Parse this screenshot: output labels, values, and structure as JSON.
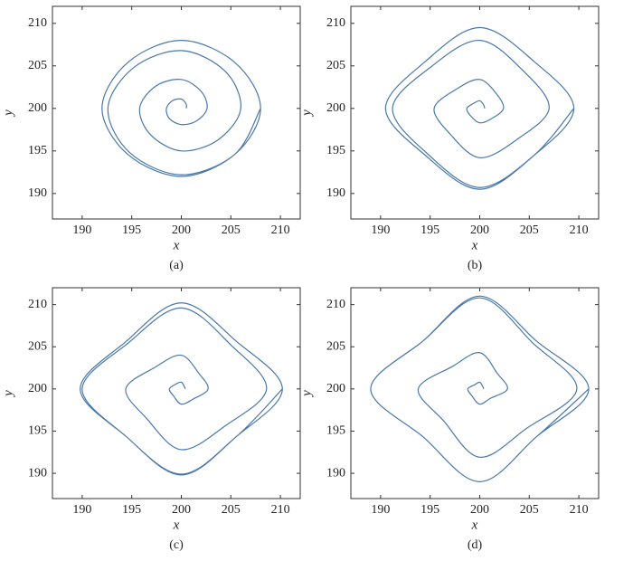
{
  "chart_data": [
    {
      "type": "line",
      "caption": "(a)",
      "xlabel": "x",
      "ylabel": "y",
      "xlim": [
        187,
        212
      ],
      "ylim": [
        187,
        212
      ],
      "xticks": [
        190,
        195,
        200,
        205,
        210
      ],
      "yticks": [
        190,
        195,
        200,
        205,
        210
      ],
      "series": [
        {
          "color": "#4a78aa",
          "x": [
            200.5,
            200.5,
            200,
            199.1,
            198.5,
            198.8,
            200,
            201.5,
            202.6,
            202,
            200,
            197.4,
            195.8,
            196.9,
            200,
            203.7,
            206,
            204.4,
            200,
            195.2,
            192.6,
            194.8,
            200,
            205.4,
            208,
            205.4,
            200,
            194.6,
            192,
            194.6,
            200,
            205.4,
            208
          ],
          "values": [
            200,
            200.5,
            201.1,
            200.9,
            200,
            198.8,
            198.1,
            198.5,
            200,
            202,
            203.4,
            202.6,
            200,
            196.9,
            195,
            196.3,
            200,
            204.4,
            206.8,
            204.8,
            200,
            194.8,
            192.2,
            194.6,
            200,
            205.4,
            208,
            205.4,
            200,
            194.6,
            192,
            194.6,
            200
          ]
        }
      ]
    },
    {
      "type": "line",
      "caption": "(b)",
      "xlabel": "x",
      "ylabel": "y",
      "xlim": [
        187,
        212
      ],
      "ylim": [
        187,
        212
      ],
      "xticks": [
        190,
        195,
        200,
        205,
        210
      ],
      "yticks": [
        190,
        195,
        200,
        205,
        210
      ],
      "series": [
        {
          "color": "#4a78aa",
          "x": [
            200.5,
            200.4,
            200,
            199.4,
            198.7,
            199.1,
            200,
            201.2,
            202.4,
            201.7,
            200,
            197.7,
            195.4,
            197,
            200,
            203.7,
            207,
            204.4,
            200,
            195.1,
            191.2,
            194.7,
            200,
            205.5,
            209.5,
            205.5,
            200,
            194.5,
            190.5,
            194.5,
            200,
            205.5,
            209.5
          ],
          "values": [
            200,
            200.4,
            200.9,
            200.6,
            200,
            199.1,
            198.3,
            198.8,
            200,
            201.7,
            203.4,
            202.3,
            200,
            197,
            194.2,
            196.3,
            200,
            204.4,
            208,
            204.9,
            200,
            194.7,
            190.7,
            194.5,
            200,
            205.5,
            209.5,
            205.5,
            200,
            194.5,
            190.5,
            194.5,
            200
          ]
        }
      ]
    },
    {
      "type": "line",
      "caption": "(c)",
      "xlabel": "x",
      "ylabel": "y",
      "xlim": [
        187,
        212
      ],
      "ylim": [
        187,
        212
      ],
      "xticks": [
        190,
        195,
        200,
        205,
        210
      ],
      "yticks": [
        190,
        195,
        200,
        205,
        210
      ],
      "series": [
        {
          "color": "#4a78aa",
          "x": [
            200.4,
            200.3,
            200,
            199.5,
            198.8,
            199.2,
            200,
            201.2,
            202.7,
            201.8,
            200,
            197.4,
            194.4,
            196.5,
            200,
            204.4,
            208.6,
            205.1,
            200,
            194.6,
            190,
            194.4,
            200,
            205.6,
            210.2,
            205.6,
            200,
            194.4,
            189.8,
            194.4,
            200,
            205.6,
            210.2
          ],
          "values": [
            200,
            200.3,
            200.8,
            200.6,
            200,
            199.2,
            198.2,
            198.8,
            200,
            201.8,
            204,
            202.6,
            200,
            196.5,
            192.8,
            195.6,
            200,
            205.1,
            209.6,
            205.4,
            200,
            194.4,
            189.9,
            194.4,
            200,
            205.6,
            210.2,
            205.6,
            200,
            194.4,
            189.8,
            194.4,
            200
          ]
        }
      ]
    },
    {
      "type": "line",
      "caption": "(d)",
      "xlabel": "x",
      "ylabel": "y",
      "xlim": [
        187,
        212
      ],
      "ylim": [
        187,
        212
      ],
      "xticks": [
        190,
        195,
        200,
        205,
        210
      ],
      "yticks": [
        190,
        195,
        200,
        205,
        210
      ],
      "series": [
        {
          "color": "#4a78aa",
          "x": [
            200.4,
            200.3,
            200,
            199.5,
            198.8,
            199.2,
            200,
            201.1,
            202.8,
            201.8,
            200,
            197.3,
            193.8,
            196.3,
            200,
            204.7,
            209.8,
            205.4,
            200,
            194.3,
            189,
            194.3,
            200,
            205.7,
            211,
            205.7,
            200,
            194.3,
            189,
            194.3,
            200,
            205.7,
            211
          ],
          "values": [
            200,
            200.3,
            200.8,
            200.5,
            200,
            199.2,
            198.2,
            198.9,
            200,
            201.8,
            204.3,
            202.7,
            200,
            196.3,
            191.9,
            195.3,
            200,
            205.4,
            210.8,
            205.7,
            200,
            194.3,
            189,
            194.3,
            200,
            205.7,
            211,
            205.7,
            200,
            194.3,
            189,
            194.3,
            200
          ]
        }
      ]
    }
  ]
}
